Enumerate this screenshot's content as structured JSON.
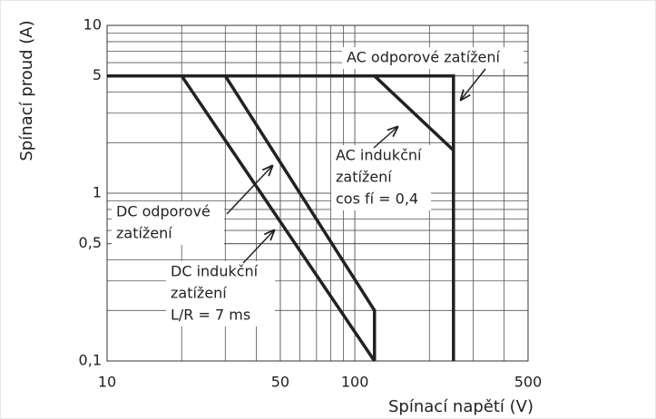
{
  "chart_data": {
    "type": "line",
    "ylabel": "Spínací proud (A)",
    "xlabel": "Spínací napětí (V)",
    "xscale": "log",
    "yscale": "log",
    "grid": true,
    "xlim": [
      10,
      500
    ],
    "ylim": [
      0.1,
      10
    ],
    "xticks": [
      10,
      50,
      100,
      500
    ],
    "yticks": [
      {
        "value": 0.1,
        "label": "0,1"
      },
      {
        "value": 0.5,
        "label": "0,5"
      },
      1,
      5,
      10
    ],
    "color": "#222222",
    "series": [
      {
        "x": [
          10,
          250,
          250
        ],
        "values": [
          5,
          5,
          0.1
        ]
      },
      {
        "x": [
          120,
          250
        ],
        "values": [
          5,
          1.8
        ]
      },
      {
        "x": [
          30,
          120,
          120
        ],
        "values": [
          5,
          0.2,
          0.1
        ]
      },
      {
        "x": [
          20,
          120
        ],
        "values": [
          5,
          0.1
        ]
      }
    ],
    "annotations": [
      {
        "lines": [
          "AC odporové zatížení"
        ]
      },
      {
        "lines": [
          "AC indukční",
          "zatížení",
          "cos fí = 0,4"
        ]
      },
      {
        "lines": [
          "DC odporové",
          "zatížení"
        ]
      },
      {
        "lines": [
          "DC indukční",
          "zatížení",
          "L/R = 7 ms"
        ]
      }
    ]
  }
}
